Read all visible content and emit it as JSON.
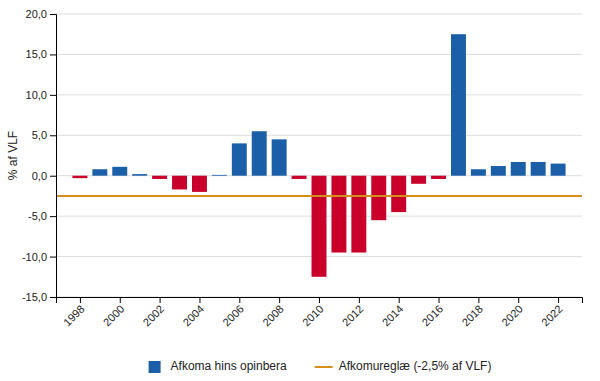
{
  "chart_data": {
    "type": "bar",
    "ylabel": "% af VLF",
    "x": [
      1998,
      1999,
      2000,
      2001,
      2002,
      2003,
      2004,
      2005,
      2006,
      2007,
      2008,
      2009,
      2010,
      2011,
      2012,
      2013,
      2014,
      2015,
      2016,
      2017,
      2018,
      2019,
      2020,
      2021,
      2022
    ],
    "series": [
      {
        "name": "Afkoma hins opinbera",
        "type": "bar",
        "color": "#1A5FA8",
        "colors": [
          "#C8002A",
          "#1A5FA8",
          "#1A5FA8",
          "#1A5FA8",
          "#C8002A",
          "#C8002A",
          "#C8002A",
          "#1A5FA8",
          "#1A5FA8",
          "#1A5FA8",
          "#1A5FA8",
          "#C8002A",
          "#C8002A",
          "#C8002A",
          "#C8002A",
          "#C8002A",
          "#C8002A",
          "#C8002A",
          "#C8002A",
          "#1A5FA8",
          "#1A5FA8",
          "#1A5FA8",
          "#1A5FA8",
          "#1A5FA8",
          "#1A5FA8"
        ],
        "values": [
          -0.3,
          0.8,
          1.1,
          0.2,
          -0.4,
          -1.7,
          -2.0,
          0.1,
          4.0,
          5.5,
          4.5,
          -0.4,
          -12.5,
          -9.5,
          -9.5,
          -5.5,
          -4.5,
          -1.0,
          -0.4,
          17.5,
          0.8,
          1.2,
          1.7,
          1.7,
          1.5
        ]
      },
      {
        "name": "Afkomureglæ (-2,5% af VLF)",
        "type": "hline",
        "color": "#D4901A",
        "value": -2.5
      }
    ],
    "xlim": [
      1996.8,
      2023.2
    ],
    "xticks": [
      1998,
      2000,
      2002,
      2004,
      2006,
      2008,
      2010,
      2012,
      2014,
      2016,
      2018,
      2020,
      2022
    ],
    "ylim": [
      -15.0,
      20.0
    ],
    "yticks": [
      {
        "value": -15.0,
        "label": "-15,0"
      },
      {
        "value": -10.0,
        "label": "-10,0"
      },
      {
        "value": -5.0,
        "label": "-5,0"
      },
      {
        "value": 0.0,
        "label": "0,0"
      },
      {
        "value": 5.0,
        "label": "5,0"
      },
      {
        "value": 10.0,
        "label": "10,0"
      },
      {
        "value": 15.0,
        "label": "15,0"
      },
      {
        "value": 20.0,
        "label": "20,0"
      }
    ],
    "grid": true,
    "legend": "bottom"
  }
}
